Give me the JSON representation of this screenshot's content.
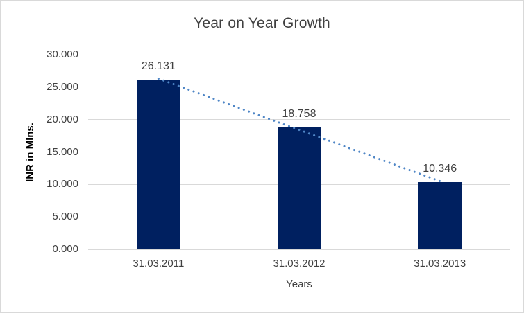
{
  "chart_data": {
    "type": "bar",
    "title": "Year on Year Growth",
    "categories": [
      "31.03.2011",
      "31.03.2012",
      "31.03.2013"
    ],
    "values": [
      26.131,
      18.758,
      10.346
    ],
    "data_labels": [
      "26.131",
      "18.758",
      "10.346"
    ],
    "xlabel": "Years",
    "ylabel": "INR in Mlns.",
    "ylim": [
      0,
      30
    ],
    "yticks": [
      {
        "value": 0,
        "label": "0.000"
      },
      {
        "value": 5,
        "label": "5.000"
      },
      {
        "value": 10,
        "label": "10.000"
      },
      {
        "value": 15,
        "label": "15.000"
      },
      {
        "value": 20,
        "label": "20.000"
      },
      {
        "value": 25,
        "label": "25.000"
      },
      {
        "value": 30,
        "label": "30.000"
      }
    ],
    "grid": true,
    "legend": "none",
    "trendline": {
      "type": "linear",
      "style": "round-dotted"
    },
    "colors": {
      "bar": "#002060",
      "trendline": "#4f86c6",
      "gridline": "#d9d9d9",
      "text": "#404040",
      "axis_title_y_text": "#000000",
      "frame_border": "#d9d9d9",
      "background": "#ffffff"
    }
  }
}
